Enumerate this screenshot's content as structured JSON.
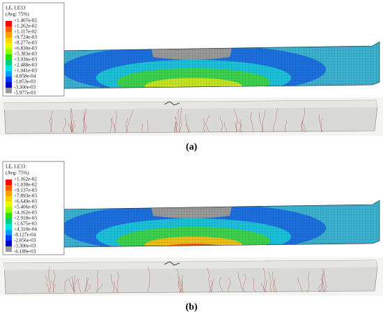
{
  "panels": [
    {
      "label": "(a)",
      "legend": {
        "title": "LE, LE33",
        "subtitle": "(Avg: 75%)",
        "values": [
          "+1.407e-02",
          "+1.262e-02",
          "+1.117e-02",
          "+9.724e-03",
          "+8.277e-03",
          "+6.830e-03",
          "+5.383e-03",
          "+3.936e-03",
          "+2.488e-03",
          "+1.041e-03",
          "-4.058e-04",
          "-1.853e-03",
          "-3.300e-03",
          "-5.977e-03"
        ]
      }
    },
    {
      "label": "(b)",
      "legend": {
        "title": "LE, LE33",
        "subtitle": "(Avg: 75%)",
        "values": [
          "+1.162e-02",
          "+1.038e-02",
          "+9.137e-03",
          "+7.893e-03",
          "+6.649e-03",
          "+5.406e-03",
          "+4.162e-03",
          "+2.918e-03",
          "+1.675e-03",
          "+4.310e-04",
          "-8.127e-04",
          "-2.056e-03",
          "-3.300e-03",
          "-6.189e-03"
        ]
      }
    }
  ]
}
